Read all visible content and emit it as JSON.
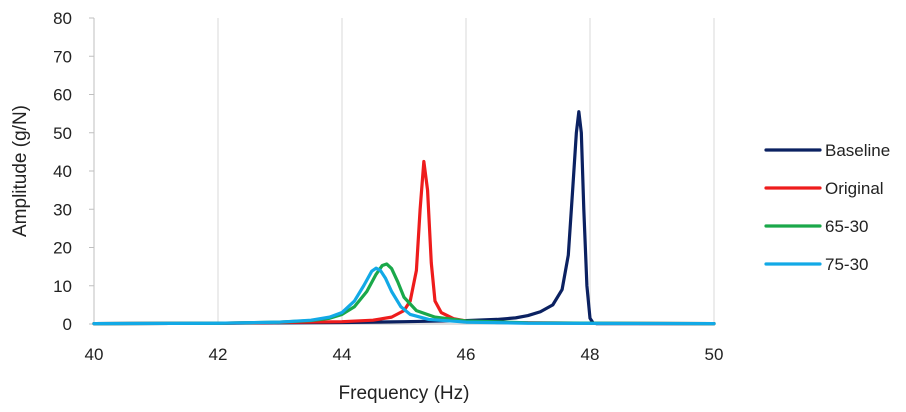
{
  "chart_data": {
    "type": "line",
    "title": "",
    "xlabel": "Frequency (Hz)",
    "ylabel": "Amplitude (g/N)",
    "xlim": [
      40,
      50
    ],
    "ylim": [
      0,
      80
    ],
    "xticks": [
      40,
      42,
      44,
      46,
      48,
      50
    ],
    "yticks": [
      0,
      10,
      20,
      30,
      40,
      50,
      60,
      70,
      80
    ],
    "grid": "vertical",
    "legend_position": "right",
    "series": [
      {
        "name": "Baseline",
        "color": "#0b2161",
        "x": [
          40,
          42,
          44,
          45,
          46,
          46.5,
          46.8,
          47.0,
          47.2,
          47.4,
          47.55,
          47.65,
          47.72,
          47.78,
          47.82,
          47.86,
          47.9,
          47.95,
          48.0,
          48.05,
          48.1,
          50
        ],
        "y": [
          0.1,
          0.2,
          0.4,
          0.6,
          0.9,
          1.2,
          1.6,
          2.2,
          3.2,
          5.0,
          9.0,
          18.0,
          35.0,
          50.0,
          55.5,
          50.0,
          30.0,
          10.0,
          1.5,
          0.3,
          0.1,
          0.1
        ]
      },
      {
        "name": "Original",
        "color": "#ee1c1c",
        "x": [
          40,
          42,
          44,
          44.5,
          44.8,
          45.0,
          45.1,
          45.2,
          45.26,
          45.32,
          45.38,
          45.44,
          45.5,
          45.6,
          45.8,
          46.0,
          46.5,
          48,
          50
        ],
        "y": [
          0.1,
          0.2,
          0.6,
          1.0,
          1.8,
          3.5,
          6.0,
          14.0,
          30.0,
          42.5,
          35.0,
          16.0,
          6.0,
          3.0,
          1.4,
          0.8,
          0.4,
          0.2,
          0.1
        ]
      },
      {
        "name": "65-30",
        "color": "#1aa84a",
        "x": [
          40,
          42,
          43.0,
          43.5,
          43.8,
          44.0,
          44.2,
          44.4,
          44.55,
          44.65,
          44.72,
          44.8,
          44.9,
          45.0,
          45.2,
          45.5,
          46.0,
          47,
          50
        ],
        "y": [
          0.1,
          0.2,
          0.5,
          0.9,
          1.5,
          2.5,
          4.5,
          8.5,
          13.0,
          15.3,
          15.7,
          14.5,
          11.0,
          7.0,
          3.5,
          1.8,
          0.8,
          0.3,
          0.1
        ]
      },
      {
        "name": "75-30",
        "color": "#12a9e6",
        "x": [
          40,
          42,
          43.0,
          43.5,
          43.8,
          44.0,
          44.2,
          44.35,
          44.48,
          44.55,
          44.62,
          44.7,
          44.8,
          44.95,
          45.1,
          45.4,
          46.0,
          47,
          50
        ],
        "y": [
          0.1,
          0.2,
          0.5,
          1.0,
          1.8,
          3.0,
          6.0,
          10.0,
          13.8,
          14.6,
          14.0,
          12.0,
          8.5,
          4.5,
          2.5,
          1.2,
          0.5,
          0.2,
          0.1
        ]
      }
    ]
  }
}
